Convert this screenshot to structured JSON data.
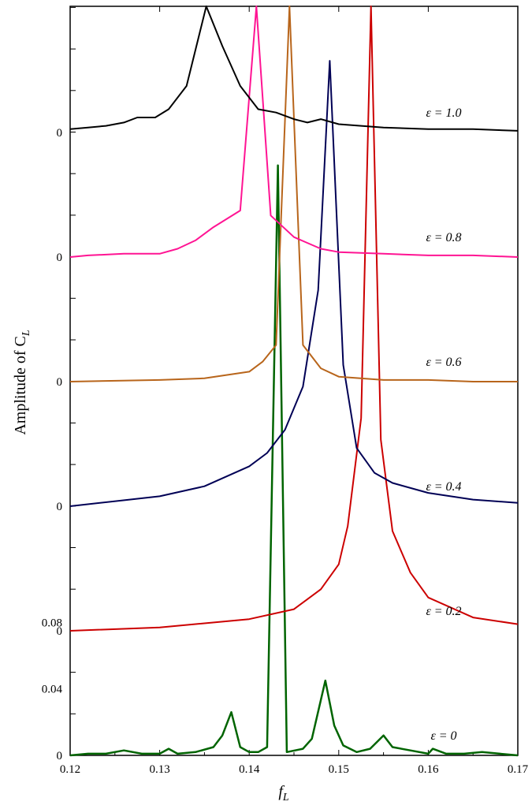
{
  "chart_data": {
    "type": "line",
    "xlabel": "f",
    "xlabel_sub": "L",
    "ylabel": "Amplitude of C",
    "ylabel_sub": "L",
    "xlim": [
      0.12,
      0.17
    ],
    "x_ticks": [
      "0.12",
      "0.13",
      "0.14",
      "0.15",
      "0.16",
      "0.17"
    ],
    "y_ticks_bottom": [
      "0",
      "0.04",
      "0.08"
    ],
    "offset_zero_label": "0",
    "ylim_bottom_panel": [
      0,
      0.12
    ],
    "grid": false,
    "series": [
      {
        "name": "ε = 0",
        "color": "#006400",
        "baseline": 0,
        "x": [
          0.12,
          0.122,
          0.124,
          0.126,
          0.128,
          0.13,
          0.131,
          0.132,
          0.134,
          0.136,
          0.137,
          0.138,
          0.139,
          0.14,
          0.141,
          0.142,
          0.1432,
          0.1442,
          0.146,
          0.147,
          0.1485,
          0.1495,
          0.1505,
          0.152,
          0.1535,
          0.155,
          0.156,
          0.158,
          0.16,
          0.1605,
          0.162,
          0.164,
          0.166,
          0.168,
          0.17
        ],
        "y": [
          0,
          0.001,
          0.001,
          0.003,
          0.001,
          0.001,
          0.004,
          0.001,
          0.002,
          0.005,
          0.012,
          0.026,
          0.005,
          0.002,
          0.002,
          0.005,
          0.355,
          0.002,
          0.004,
          0.01,
          0.045,
          0.018,
          0.006,
          0.002,
          0.004,
          0.012,
          0.005,
          0.003,
          0.001,
          0.004,
          0.001,
          0.001,
          0.002,
          0.001,
          0
        ]
      },
      {
        "name": "ε = 0.2",
        "color": "#cc0000",
        "baseline": 1,
        "x": [
          0.12,
          0.13,
          0.14,
          0.145,
          0.148,
          0.15,
          0.151,
          0.1525,
          0.1536,
          0.1547,
          0.156,
          0.158,
          0.16,
          0.165,
          0.17
        ],
        "y": [
          0,
          0.002,
          0.007,
          0.013,
          0.025,
          0.04,
          0.063,
          0.128,
          0.44,
          0.115,
          0.06,
          0.035,
          0.02,
          0.008,
          0.004
        ]
      },
      {
        "name": "ε = 0.4",
        "color": "#000055",
        "baseline": 2,
        "x": [
          0.12,
          0.13,
          0.135,
          0.14,
          0.142,
          0.144,
          0.146,
          0.1477,
          0.149,
          0.1505,
          0.152,
          0.154,
          0.156,
          0.16,
          0.165,
          0.17
        ],
        "y": [
          0,
          0.006,
          0.012,
          0.024,
          0.032,
          0.046,
          0.072,
          0.13,
          0.268,
          0.085,
          0.035,
          0.02,
          0.014,
          0.008,
          0.004,
          0.002
        ]
      },
      {
        "name": "ε = 0.6",
        "color": "#b8651b",
        "baseline": 3,
        "x": [
          0.12,
          0.13,
          0.135,
          0.14,
          0.1415,
          0.143,
          0.1445,
          0.146,
          0.148,
          0.15,
          0.155,
          0.16,
          0.165,
          0.17
        ],
        "y": [
          0,
          0.001,
          0.002,
          0.006,
          0.012,
          0.022,
          0.245,
          0.022,
          0.008,
          0.003,
          0.001,
          0.001,
          0,
          0
        ]
      },
      {
        "name": "ε = 0.8",
        "color": "#ff1493",
        "baseline": 4,
        "x": [
          0.12,
          0.122,
          0.126,
          0.13,
          0.132,
          0.134,
          0.136,
          0.139,
          0.1408,
          0.1424,
          0.145,
          0.148,
          0.15,
          0.155,
          0.16,
          0.165,
          0.17
        ],
        "y": [
          0,
          0.001,
          0.002,
          0.002,
          0.005,
          0.01,
          0.018,
          0.028,
          0.168,
          0.025,
          0.012,
          0.005,
          0.003,
          0.002,
          0.001,
          0.001,
          0
        ]
      },
      {
        "name": "ε = 1.0",
        "color": "#000000",
        "baseline": 5,
        "x": [
          0.12,
          0.122,
          0.124,
          0.126,
          0.1275,
          0.1295,
          0.131,
          0.133,
          0.1352,
          0.137,
          0.139,
          0.141,
          0.143,
          0.145,
          0.1465,
          0.148,
          0.15,
          0.155,
          0.16,
          0.165,
          0.17
        ],
        "y": [
          0.002,
          0.003,
          0.004,
          0.006,
          0.009,
          0.009,
          0.014,
          0.028,
          0.11,
          0.052,
          0.028,
          0.014,
          0.012,
          0.008,
          0.006,
          0.008,
          0.005,
          0.003,
          0.002,
          0.002,
          0.001
        ]
      }
    ]
  }
}
